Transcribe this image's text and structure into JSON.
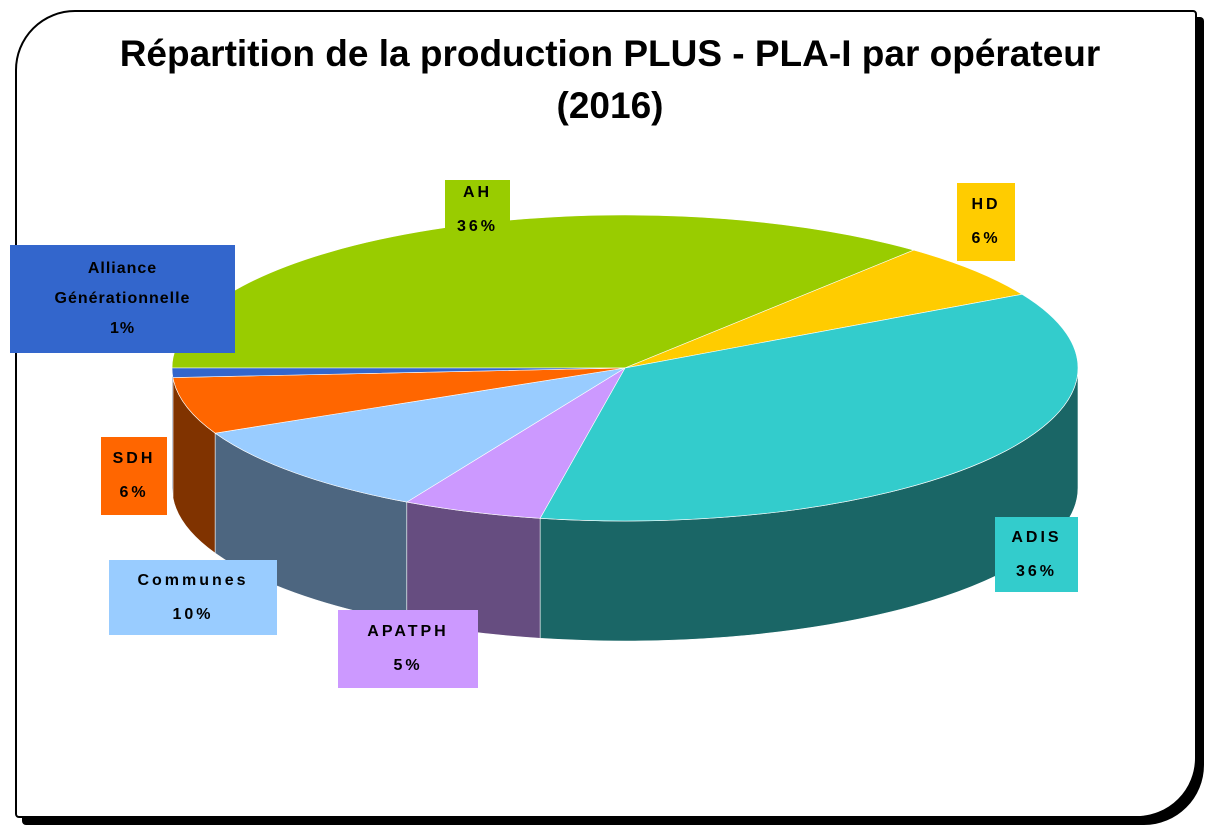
{
  "chart_data": {
    "type": "pie",
    "title": "Répartition de la production PLUS - PLA-I par opérateur (2016)",
    "categories": [
      "AH",
      "HD",
      "ADIS",
      "APATPH",
      "Communes",
      "SDH",
      "Alliance Générationnelle"
    ],
    "values": [
      36,
      6,
      36,
      5,
      10,
      6,
      1
    ],
    "value_labels": [
      "36%",
      "6%",
      "36%",
      "5%",
      "10%",
      "6%",
      "1%"
    ],
    "colors": [
      "#99cc00",
      "#ffcc00",
      "#33cccc",
      "#cc99ff",
      "#99ccff",
      "#ff6600",
      "#3366cc"
    ],
    "style": "3d"
  }
}
